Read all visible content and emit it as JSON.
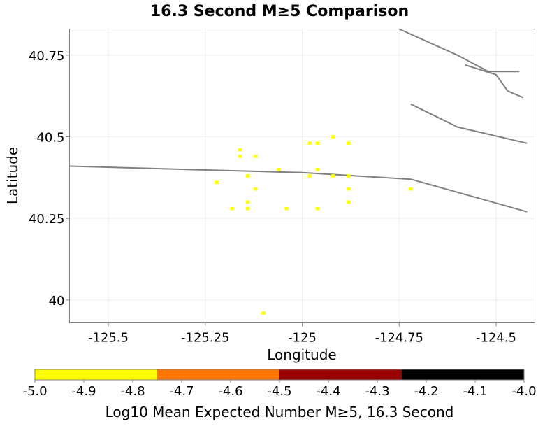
{
  "chart_data": {
    "type": "scatter",
    "title": "16.3 Second M≥5 Comparison",
    "xlabel": "Longitude",
    "ylabel": "Latitude",
    "xlim": [
      -125.6,
      -124.4
    ],
    "ylim": [
      39.93,
      40.83
    ],
    "xticks": [
      -125.5,
      -125.25,
      -125,
      -124.75,
      -124.5
    ],
    "xtick_labels": [
      "-125.5",
      "-125.25",
      "-125",
      "-124.75",
      "-124.5"
    ],
    "yticks": [
      40.75,
      40.5,
      40.25,
      40
    ],
    "ytick_labels": [
      "40.75",
      "40.5",
      "40.25",
      "40"
    ],
    "grid": true,
    "series": [
      {
        "name": "cells (Log10 Mean Expected Number, bin -5.0 to -4.75)",
        "color": "#ffff00",
        "cell_size_deg": 0.02,
        "points": [
          {
            "x": -124.92,
            "y": 40.5
          },
          {
            "x": -124.96,
            "y": 40.48
          },
          {
            "x": -124.98,
            "y": 40.48
          },
          {
            "x": -124.88,
            "y": 40.48
          },
          {
            "x": -125.16,
            "y": 40.46
          },
          {
            "x": -125.16,
            "y": 40.44
          },
          {
            "x": -125.12,
            "y": 40.44
          },
          {
            "x": -125.06,
            "y": 40.4
          },
          {
            "x": -124.96,
            "y": 40.4
          },
          {
            "x": -125.14,
            "y": 40.38
          },
          {
            "x": -124.98,
            "y": 40.38
          },
          {
            "x": -124.92,
            "y": 40.38
          },
          {
            "x": -124.88,
            "y": 40.38
          },
          {
            "x": -125.22,
            "y": 40.36
          },
          {
            "x": -125.12,
            "y": 40.34
          },
          {
            "x": -124.88,
            "y": 40.34
          },
          {
            "x": -124.72,
            "y": 40.34
          },
          {
            "x": -125.14,
            "y": 40.3
          },
          {
            "x": -124.88,
            "y": 40.3
          },
          {
            "x": -125.18,
            "y": 40.28
          },
          {
            "x": -125.14,
            "y": 40.28
          },
          {
            "x": -125.04,
            "y": 40.28
          },
          {
            "x": -124.96,
            "y": 40.28
          },
          {
            "x": -125.1,
            "y": 39.96
          }
        ]
      }
    ],
    "fault_traces": [
      [
        [
          -125.6,
          40.41
        ],
        [
          -125.0,
          40.39
        ],
        [
          -124.72,
          40.37
        ],
        [
          -124.42,
          40.27
        ]
      ],
      [
        [
          -124.75,
          40.83
        ],
        [
          -124.6,
          40.75
        ],
        [
          -124.52,
          40.7
        ],
        [
          -124.44,
          40.7
        ]
      ],
      [
        [
          -124.58,
          40.72
        ],
        [
          -124.5,
          40.69
        ],
        [
          -124.47,
          40.64
        ],
        [
          -124.43,
          40.62
        ]
      ],
      [
        [
          -124.72,
          40.6
        ],
        [
          -124.6,
          40.53
        ],
        [
          -124.42,
          40.48
        ]
      ]
    ],
    "colorbar": {
      "label": "Log10 Mean Expected Number M≥5, 16.3 Second",
      "min": -5.0,
      "max": -4.0,
      "tick_values": [
        -5.0,
        -4.9,
        -4.8,
        -4.7,
        -4.6,
        -4.5,
        -4.4,
        -4.3,
        -4.2,
        -4.1,
        -4.0
      ],
      "tick_labels": [
        "-5.0",
        "-4.9",
        "-4.8",
        "-4.7",
        "-4.6",
        "-4.5",
        "-4.4",
        "-4.3",
        "-4.2",
        "-4.1",
        "-4.0"
      ],
      "bins": [
        {
          "from": -5.0,
          "to": -4.75,
          "color": "#ffff00"
        },
        {
          "from": -4.75,
          "to": -4.5,
          "color": "#ff7700"
        },
        {
          "from": -4.5,
          "to": -4.25,
          "color": "#990000"
        },
        {
          "from": -4.25,
          "to": -4.0,
          "color": "#000000"
        }
      ]
    }
  }
}
